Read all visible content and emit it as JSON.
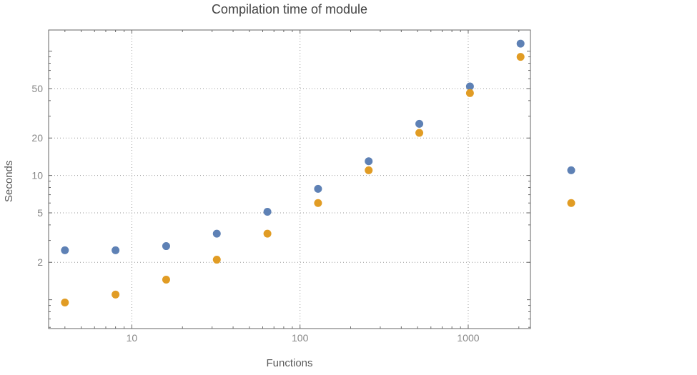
{
  "chart_data": {
    "type": "scatter",
    "title": "Compilation time of module",
    "xlabel": "Functions",
    "ylabel": "Seconds",
    "x_scale": "log",
    "y_scale": "log",
    "xlim": [
      3.2,
      2344
    ],
    "ylim": [
      0.586,
      148
    ],
    "x_ticks": [
      10,
      100,
      1000
    ],
    "y_ticks": [
      2,
      5,
      10,
      20,
      50
    ],
    "grid": true,
    "grid_style": "dotted",
    "legend": "none",
    "clip_points": false,
    "point_radius": 5.5,
    "colors": {
      "grid": "#9a9a9a",
      "frame": "#666666",
      "tick_labels": "#878787",
      "title": "#444444",
      "axis_labels": "#5a5a5a",
      "background": "#ffffff"
    },
    "x": [
      4,
      8,
      16,
      32,
      64,
      128,
      256,
      512,
      1024,
      2048,
      4096
    ],
    "series": [
      {
        "name": "blue-series",
        "color": "#5e81b5",
        "values": [
          2.5,
          2.5,
          2.7,
          3.4,
          5.1,
          7.8,
          13,
          26,
          52,
          115,
          11
        ]
      },
      {
        "name": "orange-series",
        "color": "#e19c24",
        "values": [
          0.95,
          1.1,
          1.45,
          2.1,
          3.4,
          6,
          11,
          22,
          46,
          90,
          6
        ]
      }
    ]
  }
}
